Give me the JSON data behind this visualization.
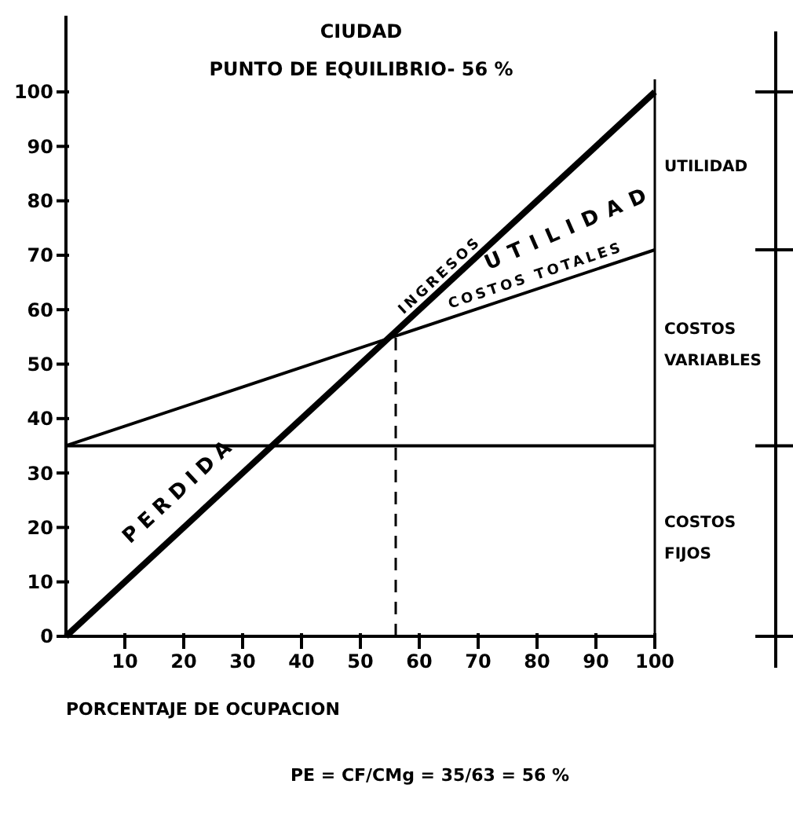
{
  "chart_data": {
    "type": "line",
    "title": "CIUDAD",
    "subtitle": "PUNTO DE EQUILIBRIO- 56 %",
    "xlabel": "PORCENTAJE DE OCUPACION",
    "x": [
      0,
      100
    ],
    "xlim": [
      0,
      100
    ],
    "xticks": [
      10,
      20,
      30,
      40,
      50,
      60,
      70,
      80,
      90,
      100
    ],
    "ylim": [
      0,
      114
    ],
    "yticks": [
      0,
      10,
      20,
      30,
      40,
      50,
      60,
      70,
      80,
      90,
      100
    ],
    "series": [
      {
        "name": "INGRESOS",
        "color": "#000000",
        "values": [
          0,
          100
        ]
      },
      {
        "name": "COSTOS TOTALES",
        "color": "#000000",
        "values": [
          35,
          71
        ]
      },
      {
        "color": "#000000",
        "values": [
          35,
          35
        ]
      }
    ],
    "ref_lines": [
      {
        "axis": "x",
        "value": 56,
        "line_style": "dashed"
      }
    ],
    "annotations": [
      "UTILIDAD",
      "COSTOS VARIABLES",
      "COSTOS FIJOS",
      "PERDIDA",
      "UTILIDAD",
      "PE = CF/CMg = 35/63 = 56 %"
    ],
    "grid": false,
    "marker": "none",
    "line_style": "solid"
  }
}
